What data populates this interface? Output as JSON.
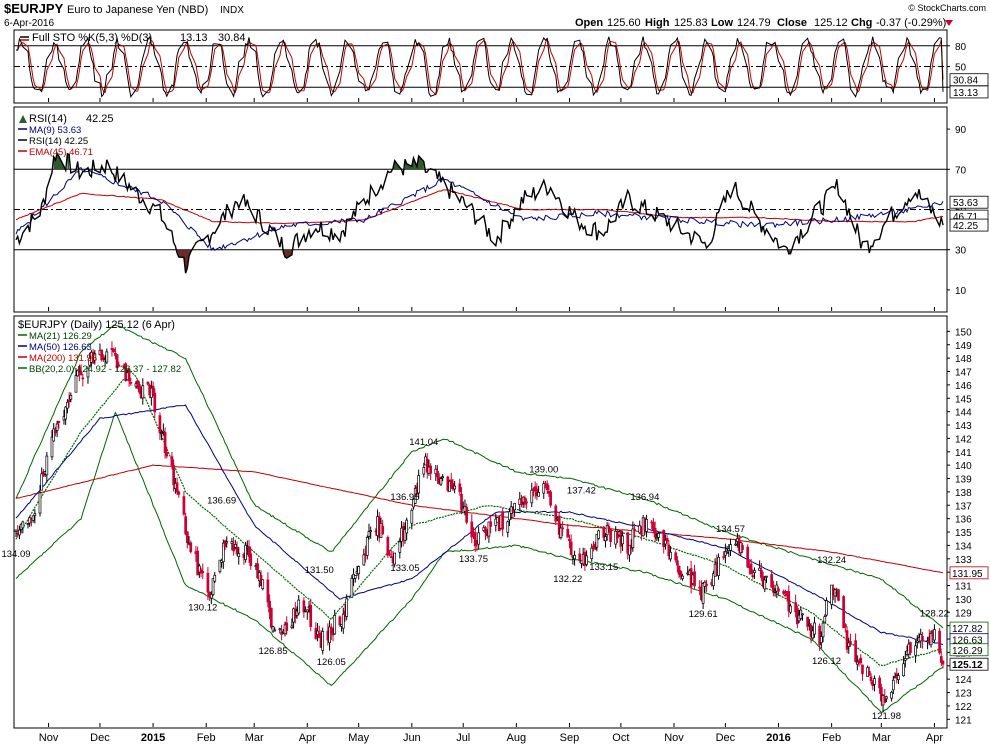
{
  "header": {
    "symbol": "$EURJPY",
    "name": "Euro to Japanese Yen (NBD)",
    "exchange": "INDX",
    "date": "6-Apr-2016",
    "watermark": "© StockCharts.com",
    "open_label": "Open",
    "open": "125.60",
    "high_label": "High",
    "high": "125.83",
    "low_label": "Low",
    "low": "124.79",
    "close_label": "Close",
    "close": "125.12",
    "chg_label": "Chg",
    "chg": "-0.37 (-0.29%)"
  },
  "colors": {
    "up": "#000000",
    "down": "#cc0033",
    "ma21": "#006600",
    "ma50": "#000080",
    "ma200": "#c00000",
    "bb": "#006600",
    "sto_k": "#000000",
    "sto_d": "#c00000",
    "rsi": "#000000",
    "rsi_ma": "#000080",
    "rsi_ema": "#c00000"
  },
  "chart_data": [
    {
      "type": "line",
      "panel": "Full Stochastic",
      "title": "Full STO %K(5,3) %D(3)",
      "values": {
        "k": 13.13,
        "d": 30.84
      },
      "ylim": [
        0,
        100
      ],
      "y_ticks": [
        20,
        50,
        80
      ],
      "ref_lines": [
        20,
        50,
        80
      ],
      "series": [
        {
          "name": "%K",
          "x": [
            "2014-10-13",
            "2014-11-24",
            "2015-01-15",
            "2015-03-02",
            "2015-04-15",
            "2015-06-01",
            "2015-07-15",
            "2015-09-01",
            "2015-10-15",
            "2015-12-01",
            "2016-01-15",
            "2016-03-01",
            "2016-04-06"
          ],
          "values": [
            60,
            85,
            20,
            90,
            15,
            85,
            15,
            80,
            20,
            85,
            20,
            90,
            13.13
          ]
        },
        {
          "name": "%D",
          "x": [
            "2014-10-13",
            "2014-11-24",
            "2015-01-15",
            "2015-03-02",
            "2015-04-15",
            "2015-06-01",
            "2015-07-15",
            "2015-09-01",
            "2015-10-15",
            "2015-12-01",
            "2016-01-15",
            "2016-03-01",
            "2016-04-06"
          ],
          "values": [
            55,
            80,
            25,
            85,
            20,
            80,
            20,
            75,
            25,
            80,
            25,
            85,
            30.84
          ]
        }
      ],
      "last_labels": [
        "30.84",
        "13.13"
      ]
    },
    {
      "type": "line",
      "panel": "RSI",
      "title": "RSI(14)",
      "value": 42.25,
      "ylim": [
        0,
        100
      ],
      "y_ticks": [
        10,
        30,
        50,
        70,
        90
      ],
      "ref_lines": [
        30,
        50,
        70
      ],
      "legend": [
        {
          "name": "RSI(14)",
          "value": "42.25"
        },
        {
          "name": "MA(9)",
          "value": "53.63"
        },
        {
          "name": "RSI(14)",
          "value": "42.25"
        },
        {
          "name": "EMA(45)",
          "value": "46.71"
        }
      ],
      "series": [
        {
          "name": "RSI(14)",
          "x": [
            "2014-10-13",
            "2014-10-28",
            "2014-11-05",
            "2014-11-20",
            "2014-12-05",
            "2014-12-20",
            "2015-01-05",
            "2015-01-20",
            "2015-02-05",
            "2015-02-20",
            "2015-03-05",
            "2015-03-20",
            "2015-04-05",
            "2015-04-20",
            "2015-05-05",
            "2015-05-20",
            "2015-06-05",
            "2015-06-20",
            "2015-07-05",
            "2015-07-20",
            "2015-08-05",
            "2015-08-20",
            "2015-09-05",
            "2015-09-20",
            "2015-10-05",
            "2015-10-20",
            "2015-11-05",
            "2015-11-20",
            "2015-12-05",
            "2015-12-20",
            "2016-01-05",
            "2016-01-20",
            "2016-02-05",
            "2016-02-20",
            "2016-03-05",
            "2016-03-20",
            "2016-04-06"
          ],
          "values": [
            35,
            50,
            78,
            68,
            72,
            60,
            48,
            22,
            40,
            55,
            45,
            30,
            42,
            38,
            55,
            70,
            72,
            62,
            50,
            35,
            55,
            62,
            45,
            38,
            55,
            48,
            40,
            32,
            62,
            45,
            30,
            45,
            62,
            30,
            45,
            60,
            42.25
          ]
        },
        {
          "name": "MA(9)",
          "x": [
            "2014-10-13",
            "2014-11-20",
            "2015-01-05",
            "2015-02-05",
            "2015-03-20",
            "2015-05-05",
            "2015-06-20",
            "2015-08-05",
            "2015-09-20",
            "2015-11-05",
            "2015-12-20",
            "2016-02-05",
            "2016-03-20",
            "2016-04-06"
          ],
          "values": [
            38,
            70,
            55,
            30,
            42,
            45,
            65,
            45,
            48,
            45,
            42,
            45,
            50,
            53.63
          ]
        },
        {
          "name": "EMA(45)",
          "x": [
            "2014-10-13",
            "2014-11-20",
            "2015-01-05",
            "2015-02-05",
            "2015-03-20",
            "2015-05-05",
            "2015-06-20",
            "2015-08-05",
            "2015-09-20",
            "2015-11-05",
            "2015-12-20",
            "2016-02-05",
            "2016-03-20",
            "2016-04-06"
          ],
          "values": [
            45,
            58,
            55,
            44,
            43,
            45,
            60,
            50,
            50,
            46,
            46,
            44,
            44,
            46.71
          ]
        }
      ],
      "last_labels": [
        "53.63",
        "46.71",
        "42.25"
      ]
    },
    {
      "type": "candlestick",
      "panel": "Price",
      "title": "$EURJPY (Daily) 125.12 (6 Apr)",
      "legend": [
        {
          "name": "MA(21)",
          "value": "126.29"
        },
        {
          "name": "MA(50)",
          "value": "126.63"
        },
        {
          "name": "MA(200)",
          "value": "131.95"
        },
        {
          "name": "BB(20,2.0)",
          "value": "124.92 - 126.37 - 127.82"
        }
      ],
      "ylim": [
        120.5,
        151
      ],
      "y_ticks": [
        121,
        122,
        123,
        124,
        125,
        126,
        127,
        128,
        129,
        130,
        131,
        132,
        133,
        134,
        135,
        136,
        137,
        138,
        139,
        140,
        141,
        142,
        143,
        144,
        145,
        146,
        147,
        148,
        149,
        150
      ],
      "x_axis_labels": [
        {
          "label": "Nov",
          "date": "2014-11-01"
        },
        {
          "label": "Dec",
          "date": "2014-12-01"
        },
        {
          "label": "2015",
          "date": "2015-01-01",
          "bold": true
        },
        {
          "label": "Feb",
          "date": "2015-02-01"
        },
        {
          "label": "Mar",
          "date": "2015-03-01"
        },
        {
          "label": "Apr",
          "date": "2015-04-01"
        },
        {
          "label": "May",
          "date": "2015-05-01"
        },
        {
          "label": "Jun",
          "date": "2015-06-01"
        },
        {
          "label": "Jul",
          "date": "2015-07-01"
        },
        {
          "label": "Aug",
          "date": "2015-08-01"
        },
        {
          "label": "Sep",
          "date": "2015-09-01"
        },
        {
          "label": "Oct",
          "date": "2015-10-01"
        },
        {
          "label": "Nov",
          "date": "2015-11-01"
        },
        {
          "label": "Dec",
          "date": "2015-12-01"
        },
        {
          "label": "2016",
          "date": "2016-01-01",
          "bold": true
        },
        {
          "label": "Feb",
          "date": "2016-02-01"
        },
        {
          "label": "Mar",
          "date": "2016-03-01"
        },
        {
          "label": "Apr",
          "date": "2016-04-01"
        }
      ],
      "close_path": {
        "x": [
          "2014-10-13",
          "2014-10-24",
          "2014-11-05",
          "2014-11-14",
          "2014-11-25",
          "2014-12-08",
          "2014-12-18",
          "2014-12-31",
          "2015-01-09",
          "2015-01-16",
          "2015-01-23",
          "2015-02-03",
          "2015-02-13",
          "2015-02-24",
          "2015-03-06",
          "2015-03-12",
          "2015-03-20",
          "2015-03-31",
          "2015-04-08",
          "2015-04-15",
          "2015-04-22",
          "2015-05-01",
          "2015-05-12",
          "2015-05-21",
          "2015-06-01",
          "2015-06-08",
          "2015-06-16",
          "2015-06-26",
          "2015-07-07",
          "2015-07-17",
          "2015-07-28",
          "2015-08-07",
          "2015-08-17",
          "2015-08-24",
          "2015-08-31",
          "2015-09-08",
          "2015-09-21",
          "2015-10-05",
          "2015-10-15",
          "2015-10-26",
          "2015-11-06",
          "2015-11-18",
          "2015-12-01",
          "2015-12-09",
          "2015-12-18",
          "2016-01-05",
          "2016-01-14",
          "2016-01-25",
          "2016-02-01",
          "2016-02-10",
          "2016-02-22",
          "2016-03-04",
          "2016-03-16",
          "2016-03-28",
          "2016-04-01",
          "2016-04-06"
        ],
        "values": [
          134.5,
          136.8,
          142.5,
          145.8,
          147.9,
          148.5,
          146.0,
          145.3,
          141.0,
          137.5,
          133.5,
          130.5,
          134.5,
          133.5,
          131.0,
          127.5,
          128.2,
          129.8,
          126.5,
          127.8,
          128.8,
          133.0,
          135.5,
          133.2,
          136.5,
          140.5,
          139.2,
          138.5,
          134.5,
          135.3,
          136.2,
          137.5,
          138.5,
          136.0,
          134.2,
          132.8,
          135.2,
          134.0,
          135.8,
          134.0,
          132.0,
          130.5,
          133.5,
          134.2,
          132.0,
          130.0,
          128.5,
          127.2,
          131.5,
          126.8,
          124.2,
          122.3,
          126.5,
          127.2,
          127.5,
          125.12
        ]
      },
      "annotations": [
        {
          "label": "134.09",
          "date": "2014-10-13",
          "value": 134.09,
          "pos": "below"
        },
        {
          "label": "149.78",
          "date": "2014-12-08",
          "value": 149.78,
          "pos": "none"
        },
        {
          "label": "136.69",
          "date": "2015-02-10",
          "value": 136.69,
          "pos": "above"
        },
        {
          "label": "130.12",
          "date": "2015-01-30",
          "value": 130.12,
          "pos": "below"
        },
        {
          "label": "131.50",
          "date": "2015-04-08",
          "value": 131.5,
          "pos": "above"
        },
        {
          "label": "126.85",
          "date": "2015-03-12",
          "value": 126.85,
          "pos": "below"
        },
        {
          "label": "126.05",
          "date": "2015-04-15",
          "value": 126.05,
          "pos": "below"
        },
        {
          "label": "136.95",
          "date": "2015-05-28",
          "value": 136.95,
          "pos": "above"
        },
        {
          "label": "133.05",
          "date": "2015-05-28",
          "value": 133.05,
          "pos": "below"
        },
        {
          "label": "141.04",
          "date": "2015-06-08",
          "value": 141.04,
          "pos": "above"
        },
        {
          "label": "133.75",
          "date": "2015-07-07",
          "value": 133.75,
          "pos": "below"
        },
        {
          "label": "139.00",
          "date": "2015-08-17",
          "value": 139.0,
          "pos": "above"
        },
        {
          "label": "137.42",
          "date": "2015-09-08",
          "value": 137.42,
          "pos": "above"
        },
        {
          "label": "132.22",
          "date": "2015-08-31",
          "value": 132.22,
          "pos": "below"
        },
        {
          "label": "133.15",
          "date": "2015-09-21",
          "value": 133.15,
          "pos": "below"
        },
        {
          "label": "136.94",
          "date": "2015-10-15",
          "value": 136.94,
          "pos": "above"
        },
        {
          "label": "129.61",
          "date": "2015-11-18",
          "value": 129.61,
          "pos": "below"
        },
        {
          "label": "134.57",
          "date": "2015-12-04",
          "value": 134.57,
          "pos": "above"
        },
        {
          "label": "132.24",
          "date": "2016-02-01",
          "value": 132.24,
          "pos": "above"
        },
        {
          "label": "126.12",
          "date": "2016-01-29",
          "value": 126.12,
          "pos": "below"
        },
        {
          "label": "121.98",
          "date": "2016-03-04",
          "value": 121.98,
          "pos": "below"
        },
        {
          "label": "128.22",
          "date": "2016-04-01",
          "value": 128.22,
          "pos": "above"
        }
      ],
      "overlays": {
        "ma21": {
          "x": [
            "2014-10-13",
            "2014-11-20",
            "2014-12-20",
            "2015-01-20",
            "2015-03-01",
            "2015-04-15",
            "2015-06-01",
            "2015-07-15",
            "2015-09-01",
            "2015-10-15",
            "2015-12-01",
            "2016-01-20",
            "2016-03-01",
            "2016-04-06"
          ],
          "values": [
            134.5,
            142.5,
            147.2,
            138.0,
            133.5,
            128.5,
            135.5,
            137.0,
            136.0,
            134.5,
            132.5,
            129.0,
            125.0,
            126.29
          ]
        },
        "ma50": {
          "x": [
            "2014-10-13",
            "2014-12-01",
            "2015-01-20",
            "2015-03-01",
            "2015-04-20",
            "2015-06-01",
            "2015-07-20",
            "2015-09-01",
            "2015-10-15",
            "2015-12-01",
            "2016-01-20",
            "2016-03-01",
            "2016-04-06"
          ],
          "values": [
            136.0,
            143.5,
            144.5,
            135.5,
            130.0,
            131.5,
            136.5,
            136.5,
            135.3,
            133.8,
            130.5,
            127.5,
            126.63
          ]
        },
        "ma200": {
          "x": [
            "2014-10-13",
            "2015-01-01",
            "2015-03-01",
            "2015-06-01",
            "2015-09-01",
            "2015-12-01",
            "2016-02-01",
            "2016-04-06"
          ],
          "values": [
            137.5,
            140.0,
            139.5,
            137.0,
            135.5,
            134.5,
            133.5,
            131.95
          ]
        },
        "bb_upper": {
          "x": [
            "2014-10-13",
            "2014-11-20",
            "2014-12-10",
            "2015-01-20",
            "2015-03-01",
            "2015-04-15",
            "2015-06-01",
            "2015-06-20",
            "2015-08-01",
            "2015-09-01",
            "2015-10-15",
            "2015-12-01",
            "2016-01-20",
            "2016-03-01",
            "2016-04-06"
          ],
          "values": [
            137.5,
            148.5,
            150.5,
            148.0,
            137.0,
            133.5,
            141.0,
            142.0,
            139.5,
            139.0,
            137.5,
            135.0,
            133.0,
            131.5,
            127.82
          ]
        },
        "bb_lower": {
          "x": [
            "2014-10-13",
            "2014-11-20",
            "2014-12-10",
            "2015-01-20",
            "2015-03-01",
            "2015-04-15",
            "2015-06-01",
            "2015-06-20",
            "2015-08-01",
            "2015-09-01",
            "2015-10-15",
            "2015-12-01",
            "2016-01-20",
            "2016-03-01",
            "2016-04-06"
          ],
          "values": [
            131.5,
            136.0,
            144.0,
            131.0,
            128.5,
            123.5,
            130.0,
            133.5,
            134.0,
            133.0,
            132.0,
            130.0,
            127.0,
            121.5,
            124.92
          ]
        }
      },
      "last_labels": [
        {
          "label": "131.95",
          "value": 131.95,
          "bold": false
        },
        {
          "label": "127.82",
          "value": 127.82,
          "bold": false
        },
        {
          "label": "126.63",
          "value": 126.63,
          "bold": false
        },
        {
          "label": "126.29",
          "value": 126.29,
          "bold": false
        },
        {
          "label": "125.12",
          "value": 125.12,
          "bold": true
        }
      ]
    }
  ]
}
